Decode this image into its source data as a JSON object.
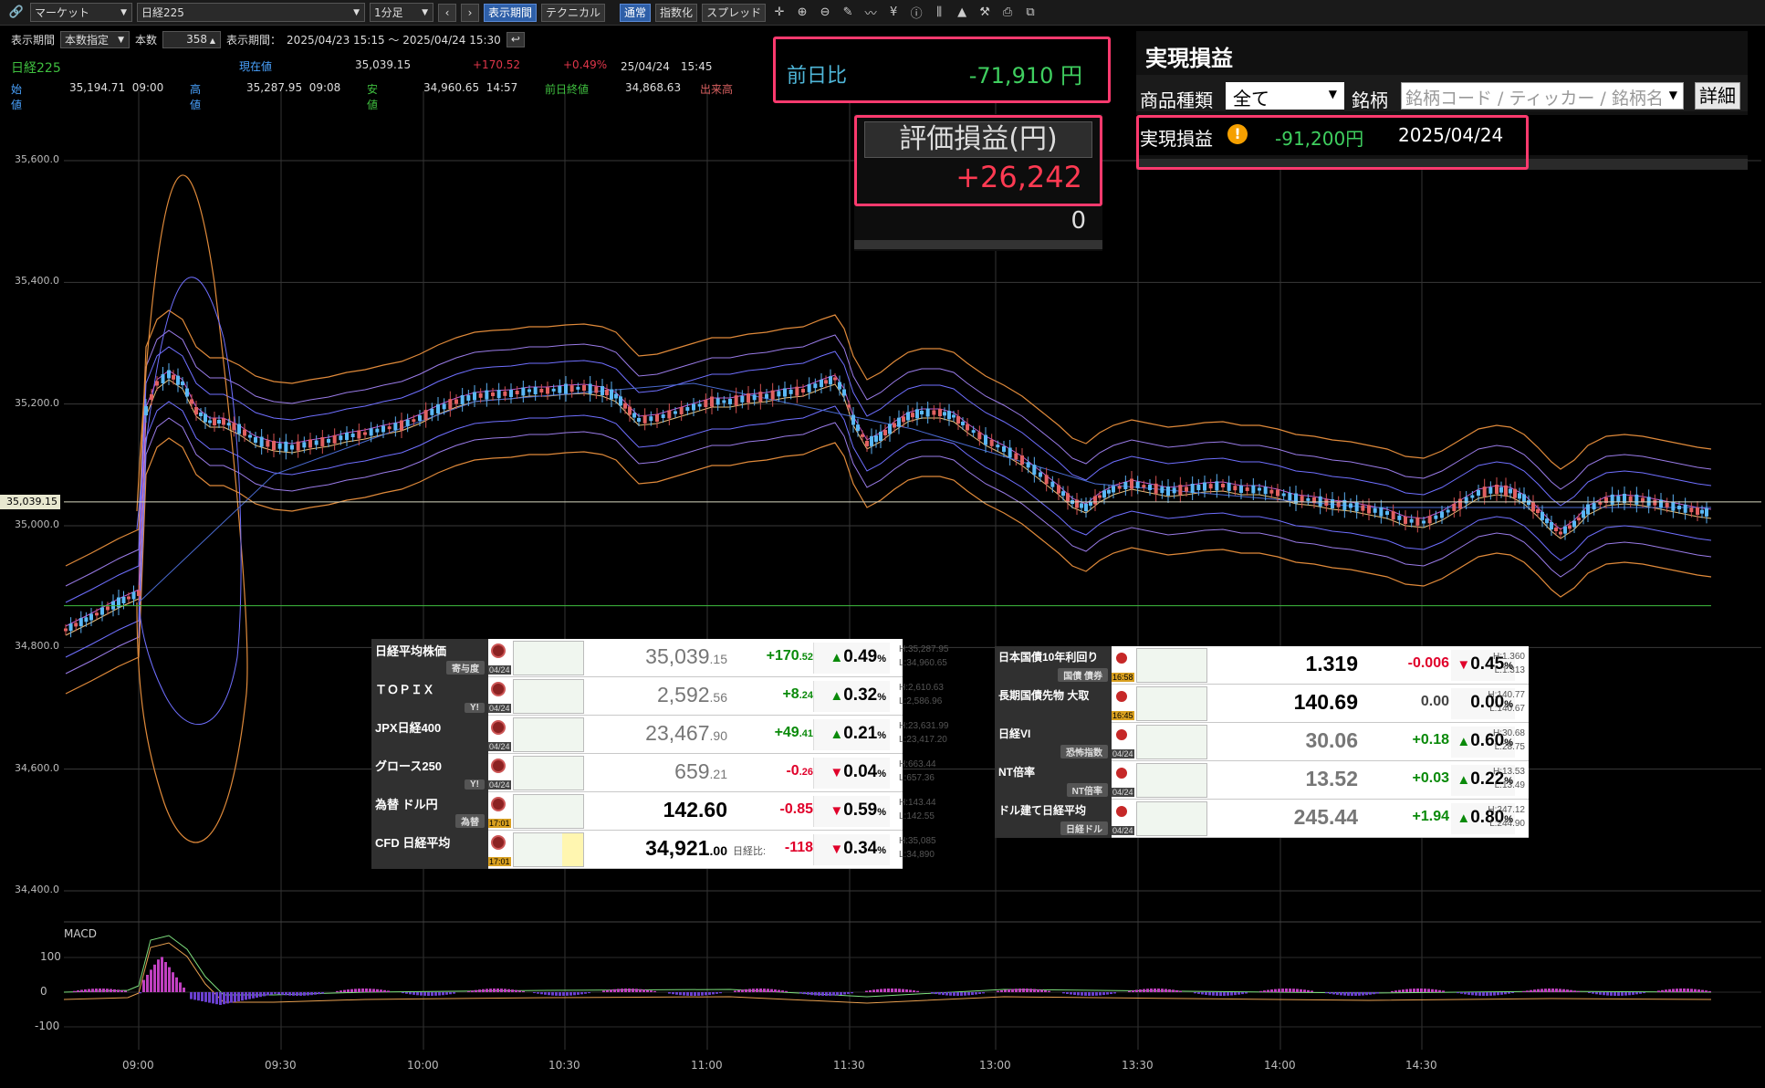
{
  "toolbar": {
    "market_select": "マーケット",
    "symbol_select": "日経225",
    "timeframe_select": "1分足",
    "btn_period": "表示期間",
    "btn_technical": "テクニカル",
    "btn_normal": "通常",
    "btn_index": "指数化",
    "btn_spread": "スプレッド"
  },
  "period_bar": {
    "period_label": "表示期間",
    "period_mode": "本数指定",
    "count_label": "本数",
    "count_value": "358",
    "range_label": "表示期間：",
    "range_value": "2025/04/23 15:15 ～ 2025/04/24 15:30"
  },
  "quote": {
    "name": "日経225",
    "current_label": "現在値",
    "current_value": "35,039.15",
    "change": "+170.52",
    "change_pct": "+0.49%",
    "datetime": "25/04/24　15:45",
    "open_label": "始値",
    "open_value": "35,194.71  09:00",
    "high_label": "高値",
    "high_value": "35,287.95  09:08",
    "low_label": "安値",
    "low_value": "34,960.65  14:57",
    "prev_label": "前日終値",
    "prev_value": "34,868.63",
    "volume_label": "出来高"
  },
  "chart_data": {
    "type": "line",
    "y_ticks": [
      "35,600.0",
      "35,400.0",
      "35,200.0",
      "35,000.0",
      "34,800.0",
      "34,600.0",
      "34,400.0"
    ],
    "x_ticks": [
      "09:00",
      "09:30",
      "10:00",
      "10:30",
      "11:00",
      "11:30",
      "13:00",
      "13:30",
      "14:00",
      "14:30"
    ],
    "current_price_tag": "35,039.15",
    "ylim": [
      34400,
      35600
    ],
    "macd_label": "MACD",
    "macd_ticks": [
      "100",
      "0",
      "-100"
    ],
    "grid": true
  },
  "overlays": {
    "prev_diff_label": "前日比",
    "prev_diff_value": "-71,910 円",
    "unrealized_label": "評価損益(円)",
    "unrealized_value": "+26,242",
    "unrealized_sub": "0",
    "realized_title": "実現損益",
    "product_type_label": "商品種類",
    "product_type_value": "全て",
    "symbol_label": "銘柄",
    "symbol_placeholder": "銘柄コード / ティッカー / 銘柄名",
    "detail_button": "詳細",
    "realized_label": "実現損益",
    "realized_value": "-91,200円",
    "realized_date": "2025/04/24"
  },
  "watchlist_left": [
    {
      "name": "日経平均株価",
      "sub": "寄与度",
      "date": "04/24",
      "val_main": "35,039",
      "val_dec": ".15",
      "chg": "+170",
      "chg_dec": ".52",
      "dir": "up",
      "pct": "0.49",
      "high": "H:35,287.95",
      "low": "L:34,960.65"
    },
    {
      "name": "ＴＯＰＩＸ",
      "sub": "Y!",
      "date": "04/24",
      "val_main": "2,592",
      "val_dec": ".56",
      "chg": "+8",
      "chg_dec": ".24",
      "dir": "up",
      "pct": "0.32",
      "high": "H:2,610.63",
      "low": "L:2,586.96"
    },
    {
      "name": "JPX日経400",
      "sub": "",
      "date": "04/24",
      "val_main": "23,467",
      "val_dec": ".90",
      "chg": "+49",
      "chg_dec": ".41",
      "dir": "up",
      "pct": "0.21",
      "high": "H:23,631.99",
      "low": "L:23,417.20"
    },
    {
      "name": "グロース250",
      "sub": "Y!",
      "date": "04/24",
      "val_main": "659",
      "val_dec": ".21",
      "chg": "-0",
      "chg_dec": ".26",
      "dir": "dn",
      "pct": "0.04",
      "high": "H:663.44",
      "low": "L:657.36"
    },
    {
      "name": "為替 ドル円",
      "sub": "為替",
      "date": "17:01",
      "val_main": "142.60",
      "val_dec": "",
      "chg": "-0.85",
      "chg_dec": "",
      "dir": "dn",
      "pct": "0.59",
      "high": "H:143.44",
      "low": "L:142.55"
    },
    {
      "name": "CFD 日経平均",
      "sub": "",
      "date": "17:01",
      "val_main": "34,921",
      "val_dec": ".00",
      "chg": "-118",
      "chg_dec": "",
      "dir": "dn",
      "pct": "0.34",
      "high": "H:35,085",
      "low": "L:34,890",
      "prefix": "日経比:"
    }
  ],
  "watchlist_right": [
    {
      "name": "日本国債10年利回り",
      "sub": "国債 債券",
      "date": "16:58",
      "val": "1.319",
      "chg": "-0.006",
      "dir": "dn",
      "pct": "0.45",
      "high": "H:1.360",
      "low": "L:1.313"
    },
    {
      "name": "長期国債先物 大取",
      "sub": "",
      "date": "16:45",
      "val": "140.69",
      "chg": "0.00",
      "dir": "flat",
      "pct": "0.00",
      "high": "H:140.77",
      "low": "L:140.67"
    },
    {
      "name": "日経VI",
      "sub": "恐怖指数",
      "date": "04/24",
      "val": "30.06",
      "chg": "+0.18",
      "dir": "up",
      "pct": "0.60",
      "high": "H:30.68",
      "low": "L:28.75"
    },
    {
      "name": "NT倍率",
      "sub": "NT倍率",
      "date": "04/24",
      "val": "13.52",
      "chg": "+0.03",
      "dir": "up",
      "pct": "0.22",
      "high": "H:13.53",
      "low": "L:13.49"
    },
    {
      "name": "ドル建て日経平均",
      "sub": "日経ドル",
      "date": "04/24",
      "val": "245.44",
      "chg": "+1.94",
      "dir": "up",
      "pct": "0.80",
      "high": "H:247.12",
      "low": "L:244.90"
    }
  ]
}
